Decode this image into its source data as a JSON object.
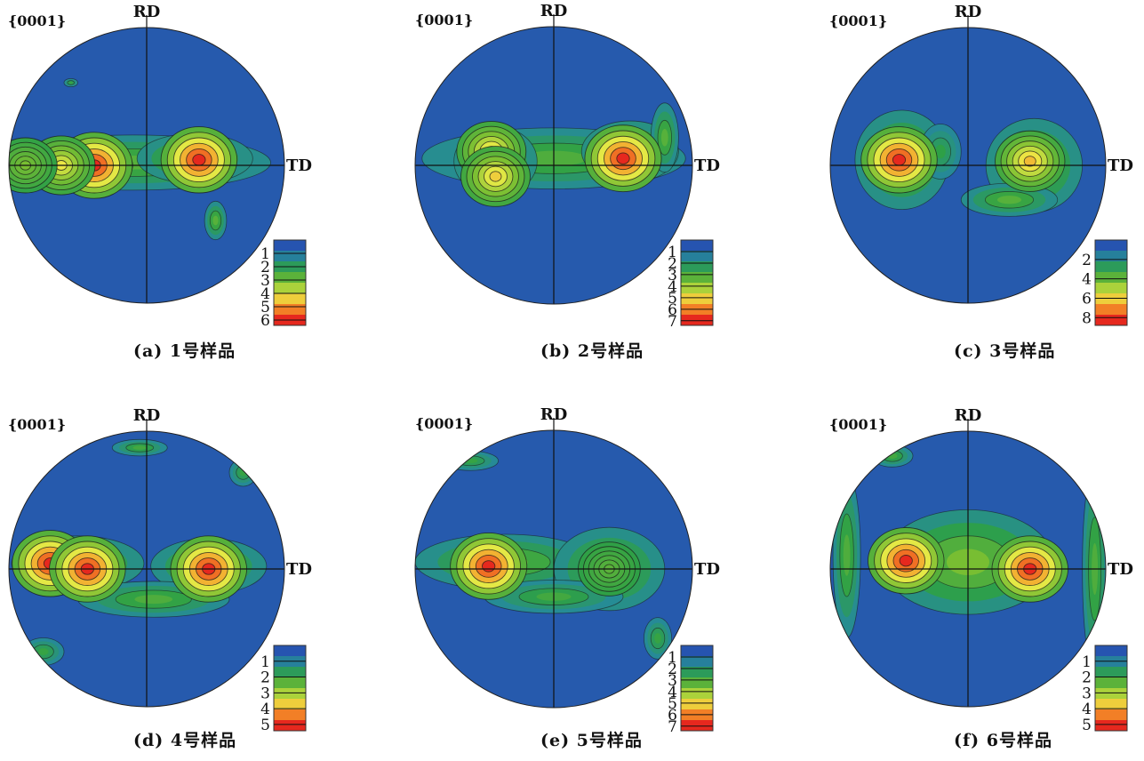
{
  "figure": {
    "panels": [
      {
        "caption": "(a) 1号样品",
        "plane": "{0001}",
        "rd": "RD",
        "td": "TD",
        "legend": [
          "1",
          "2",
          "3",
          "4",
          "5",
          "6"
        ]
      },
      {
        "caption": "(b) 2号样品",
        "plane": "{0001}",
        "rd": "RD",
        "td": "TD",
        "legend": [
          "1",
          "2",
          "3",
          "4",
          "5",
          "6",
          "7"
        ]
      },
      {
        "caption": "(c) 3号样品",
        "plane": "{0001}",
        "rd": "RD",
        "td": "TD",
        "legend": [
          "2",
          "4",
          "6",
          "8"
        ]
      },
      {
        "caption": "(d) 4号样品",
        "plane": "{0001}",
        "rd": "RD",
        "td": "TD",
        "legend": [
          "1",
          "2",
          "3",
          "4",
          "5"
        ]
      },
      {
        "caption": "(e) 5号样品",
        "plane": "{0001}",
        "rd": "RD",
        "td": "TD",
        "legend": [
          "1",
          "2",
          "3",
          "4",
          "5",
          "6",
          "7"
        ]
      },
      {
        "caption": "(f) 6号样品",
        "plane": "{0001}",
        "rd": "RD",
        "td": "TD",
        "legend": [
          "1",
          "2",
          "3",
          "4",
          "5"
        ]
      }
    ]
  },
  "chart_data": [
    {
      "type": "heatmap",
      "title": "{0001}",
      "xlabel": "TD",
      "ylabel": "RD",
      "legend_levels": [
        1,
        2,
        3,
        4,
        5,
        6
      ],
      "peaks": [
        {
          "x": -0.38,
          "y": 0.0,
          "value": 6
        },
        {
          "x": 0.38,
          "y": 0.04,
          "value": 6
        },
        {
          "x": -0.62,
          "y": 0.0,
          "value": 4
        },
        {
          "x": -0.88,
          "y": 0.0,
          "value": 3
        }
      ]
    },
    {
      "type": "heatmap",
      "title": "{0001}",
      "xlabel": "TD",
      "ylabel": "RD",
      "legend_levels": [
        1,
        2,
        3,
        4,
        5,
        6,
        7
      ],
      "peaks": [
        {
          "x": 0.5,
          "y": 0.05,
          "value": 7
        },
        {
          "x": -0.45,
          "y": 0.1,
          "value": 5
        },
        {
          "x": -0.42,
          "y": -0.08,
          "value": 5
        }
      ]
    },
    {
      "type": "heatmap",
      "title": "{0001}",
      "xlabel": "TD",
      "ylabel": "RD",
      "legend_levels": [
        2,
        4,
        6,
        8
      ],
      "peaks": [
        {
          "x": -0.5,
          "y": 0.04,
          "value": 8
        },
        {
          "x": 0.45,
          "y": 0.03,
          "value": 6
        }
      ]
    },
    {
      "type": "heatmap",
      "title": "{0001}",
      "xlabel": "TD",
      "ylabel": "RD",
      "legend_levels": [
        1,
        2,
        3,
        4,
        5
      ],
      "peaks": [
        {
          "x": -0.7,
          "y": 0.04,
          "value": 5
        },
        {
          "x": -0.43,
          "y": 0.0,
          "value": 5
        },
        {
          "x": 0.45,
          "y": 0.0,
          "value": 5
        }
      ]
    },
    {
      "type": "heatmap",
      "title": "{0001}",
      "xlabel": "TD",
      "ylabel": "RD",
      "legend_levels": [
        1,
        2,
        3,
        4,
        5,
        6,
        7
      ],
      "peaks": [
        {
          "x": -0.47,
          "y": 0.02,
          "value": 7
        },
        {
          "x": 0.4,
          "y": 0.0,
          "value": 3
        }
      ]
    },
    {
      "type": "heatmap",
      "title": "{0001}",
      "xlabel": "TD",
      "ylabel": "RD",
      "legend_levels": [
        1,
        2,
        3,
        4,
        5
      ],
      "peaks": [
        {
          "x": -0.45,
          "y": 0.06,
          "value": 5
        },
        {
          "x": 0.45,
          "y": 0.0,
          "value": 5
        }
      ]
    }
  ]
}
